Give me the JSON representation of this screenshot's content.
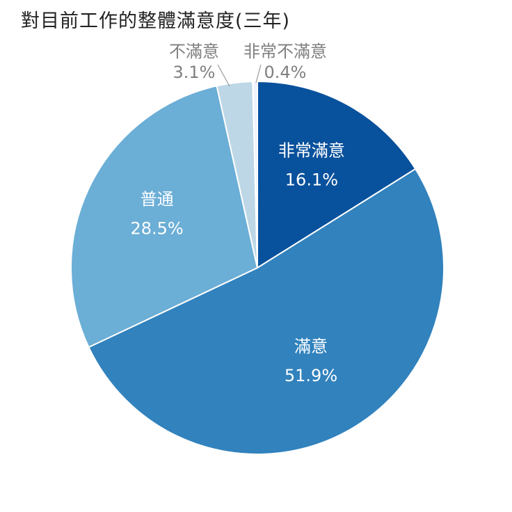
{
  "chart_data": {
    "type": "pie",
    "title": "對目前工作的整體滿意度(三年)",
    "start_angle_deg": 0,
    "direction": "clockwise",
    "slices": [
      {
        "label": "非常滿意",
        "value": 16.1,
        "value_text": "16.1%",
        "color": "#08519c",
        "label_position": "inside"
      },
      {
        "label": "滿意",
        "value": 51.9,
        "value_text": "51.9%",
        "color": "#3182bd",
        "label_position": "inside"
      },
      {
        "label": "普通",
        "value": 28.5,
        "value_text": "28.5%",
        "color": "#6baed6",
        "label_position": "inside"
      },
      {
        "label": "不滿意",
        "value": 3.1,
        "value_text": "3.1%",
        "color": "#bdd7e7",
        "label_position": "outside"
      },
      {
        "label": "非常不滿意",
        "value": 0.4,
        "value_text": "0.4%",
        "color": "#eff3ff",
        "label_position": "outside"
      }
    ]
  }
}
